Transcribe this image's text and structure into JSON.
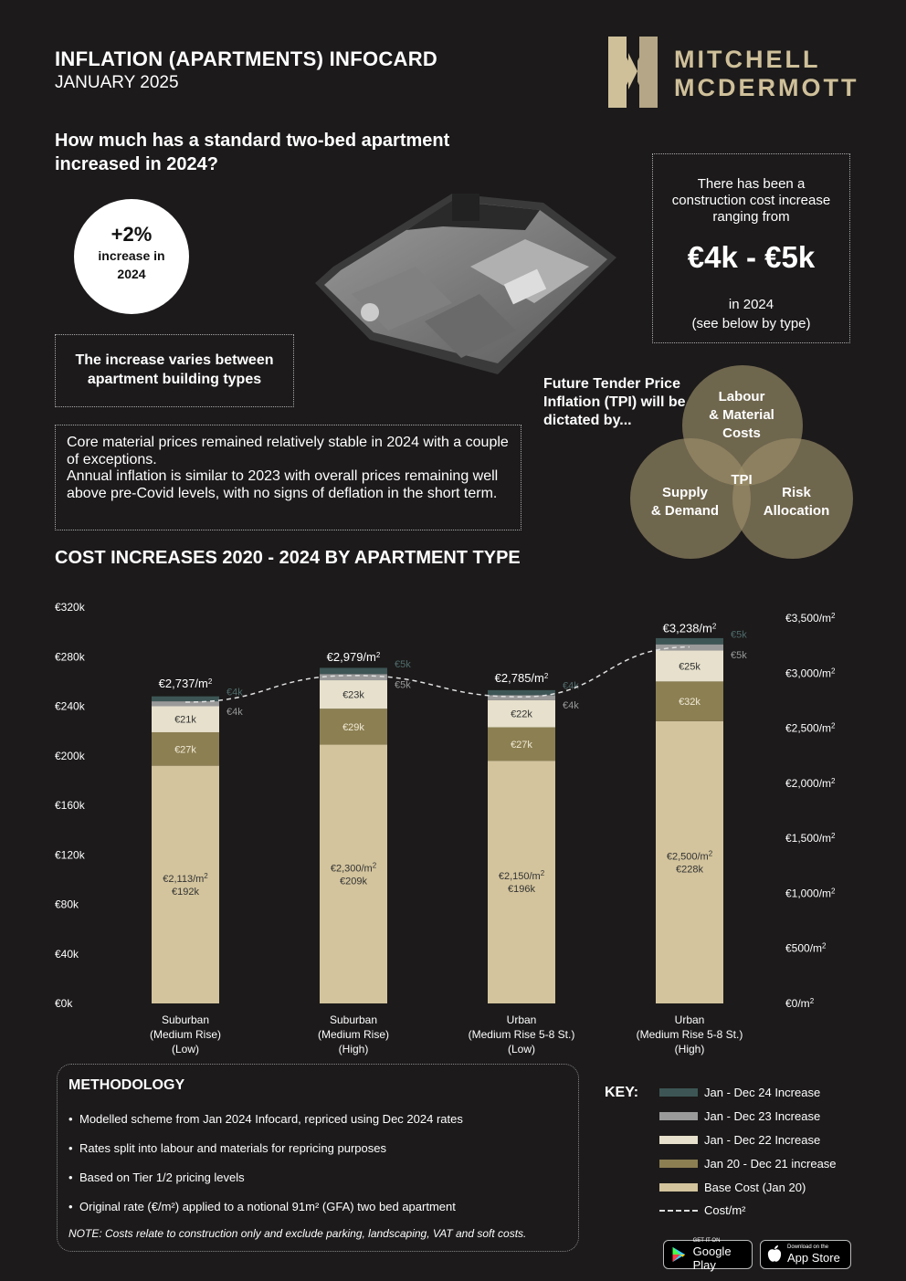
{
  "header": {
    "title": "INFLATION (APARTMENTS) INFOCARD",
    "subtitle": "JANUARY 2025",
    "logo_line1": "MITCHELL",
    "logo_line2": "MCDERMOTT"
  },
  "intro": {
    "question": "How much has a standard two-bed apartment increased in 2024?",
    "badge_value": "+2%",
    "badge_text1": "increase in",
    "badge_text2": "2024",
    "varies": "The increase varies between apartment building types",
    "core_text1": "Core material prices remained relatively stable in 2024 with a couple of exceptions.",
    "core_text2": "Annual inflation is similar to 2023 with overall prices remaining well above pre-Covid levels, with no signs of deflation in the short term."
  },
  "range_box": {
    "text1": "There has been a construction cost increase ranging from",
    "value": "€4k - €5k",
    "text2": "in 2024",
    "text3": "(see below by type)"
  },
  "tpi": {
    "heading": "Future Tender Price Inflation (TPI) will be dictated by...",
    "circle_top_1": "Labour",
    "circle_top_2": "& Material",
    "circle_top_3": "Costs",
    "circle_left_1": "Supply",
    "circle_left_2": "& Demand",
    "circle_right_1": "Risk",
    "circle_right_2": "Allocation",
    "center": "TPI"
  },
  "chart_data": {
    "type": "bar",
    "title": "COST INCREASES 2020 - 2024 BY APARTMENT TYPE",
    "stacked": true,
    "categories": [
      [
        "Suburban",
        "(Medium Rise)",
        "(Low)"
      ],
      [
        "Suburban",
        "(Medium Rise)",
        "(High)"
      ],
      [
        "Urban",
        "(Medium Rise 5-8 St.)",
        "(Low)"
      ],
      [
        "Urban",
        "(Medium Rise 5-8 St.)",
        "(High)"
      ]
    ],
    "series": [
      {
        "name": "Base Cost (Jan 20)",
        "color": "#d3c49d",
        "values": [
          192,
          209,
          196,
          228
        ],
        "labels": [
          "€192k",
          "€209k",
          "€196k",
          "€228k"
        ],
        "rate_labels": [
          "€2,113/m",
          "€2,300/m",
          "€2,150/m",
          "€2,500/m"
        ]
      },
      {
        "name": "Jan 20 - Dec 21 increase",
        "color": "#8c7f52",
        "values": [
          27,
          29,
          27,
          32
        ],
        "labels": [
          "€27k",
          "€29k",
          "€27k",
          "€32k"
        ]
      },
      {
        "name": "Jan - Dec 22 Increase",
        "color": "#e6e0cc",
        "values": [
          21,
          23,
          22,
          25
        ],
        "labels": [
          "€21k",
          "€23k",
          "€22k",
          "€25k"
        ]
      },
      {
        "name": "Jan - Dec 23 Increase",
        "color": "#9a9a9a",
        "values": [
          4,
          5,
          4,
          5
        ],
        "labels": [
          "€4k",
          "€5k",
          "€4k",
          "€5k"
        ]
      },
      {
        "name": "Jan - Dec 24 Increase",
        "color": "#3d5555",
        "values": [
          4,
          5,
          4,
          5
        ],
        "labels": [
          "€4k",
          "€5k",
          "€4k",
          "€5k"
        ]
      }
    ],
    "line_series": {
      "name": "Cost/m",
      "values": [
        2737,
        2979,
        2785,
        3238
      ],
      "labels": [
        "€2,737/m",
        "€2,979/m",
        "€2,785/m",
        "€3,238/m"
      ]
    },
    "y_left": {
      "ylim": [
        0,
        320
      ],
      "ticks": [
        "€0k",
        "€40k",
        "€80k",
        "€120k",
        "€160k",
        "€200k",
        "€240k",
        "€280k",
        "€320k"
      ]
    },
    "y_right": {
      "ylim": [
        0,
        3500
      ],
      "ticks": [
        "€0/m",
        "€500/m",
        "€1,000/m",
        "€1,500/m",
        "€2,000/m",
        "€2,500/m",
        "€3,000/m",
        "€3,500/m"
      ]
    },
    "superscript": "2",
    "grid": false
  },
  "methodology": {
    "heading": "METHODOLOGY",
    "items": [
      "Modelled scheme from Jan 2024 Infocard, repriced using Dec 2024 rates",
      "Rates split into labour and materials for repricing purposes",
      "Based on Tier 1/2 pricing levels",
      "Original rate (€/m²) applied to a notional 91m² (GFA) two bed apartment"
    ],
    "note": "NOTE: Costs relate to construction only and exclude parking, landscaping, VAT and soft costs."
  },
  "key": {
    "label": "KEY:",
    "items": [
      {
        "label": "Jan - Dec 24 Increase",
        "color": "#3d5555"
      },
      {
        "label": "Jan - Dec 23 Increase",
        "color": "#9a9a9a"
      },
      {
        "label": "Jan - Dec 22 Increase",
        "color": "#e6e0cc"
      },
      {
        "label": "Jan 20 - Dec 21 increase",
        "color": "#8c7f52"
      },
      {
        "label": "Base Cost (Jan 20)",
        "color": "#d3c49d"
      }
    ],
    "line_label": "Cost/m²"
  },
  "stores": {
    "google_small": "GET IT ON",
    "google": "Google Play",
    "apple_small": "Download on the",
    "apple": "App Store"
  }
}
